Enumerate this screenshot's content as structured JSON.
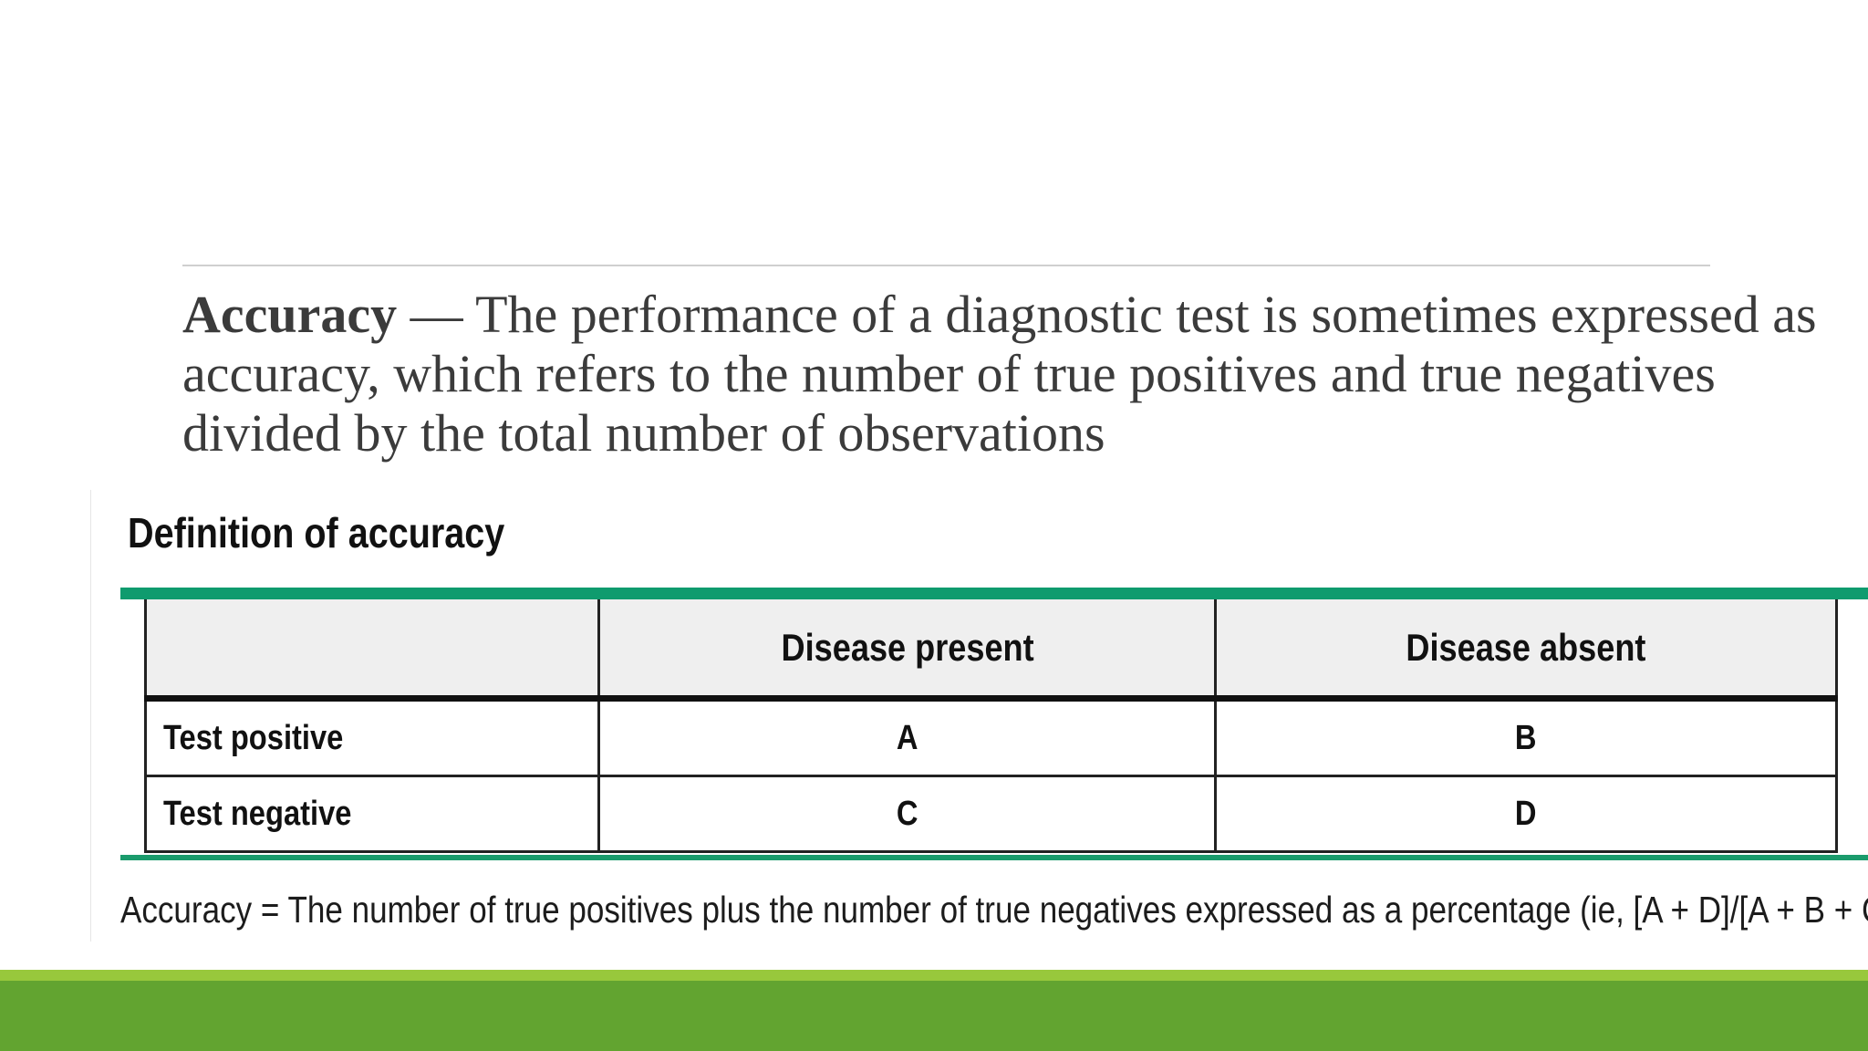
{
  "slide": {
    "term": "Accuracy",
    "definition": " — The performance of a diagnostic test is sometimes expressed as accuracy, which refers to the number of true positives and true negatives divided by the total number of observations"
  },
  "figure": {
    "title": "Definition of accuracy",
    "table": {
      "headers": [
        "",
        "Disease present",
        "Disease absent"
      ],
      "rows": [
        {
          "label": "Test positive",
          "cells": [
            "A",
            "B"
          ]
        },
        {
          "label": "Test negative",
          "cells": [
            "C",
            "D"
          ]
        }
      ]
    },
    "caption": "Accuracy = The number of true positives plus the number of true negatives expressed as a percentage (ie, [A + D]/[A + B + C + D])."
  },
  "colors": {
    "accent_green": "#0f9b6e",
    "footer_green": "#62a430",
    "footer_light_green": "#98c83c"
  }
}
